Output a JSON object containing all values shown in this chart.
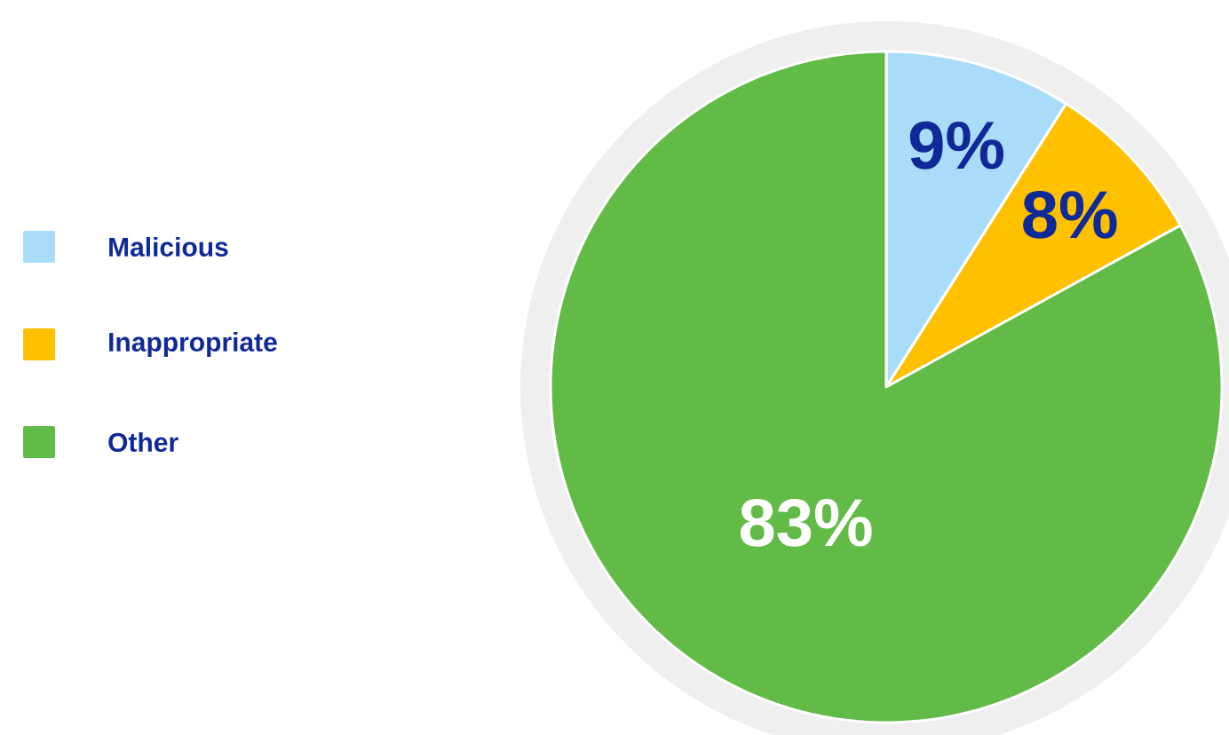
{
  "chart_data": {
    "type": "pie",
    "categories": [
      "Malicious",
      "Inappropriate",
      "Other"
    ],
    "values": [
      9,
      8,
      83
    ],
    "colors": [
      "#a9dcf8",
      "#ffc000",
      "#62bb46"
    ],
    "value_labels": [
      "9%",
      "8%",
      "83%"
    ],
    "legend": "left"
  }
}
